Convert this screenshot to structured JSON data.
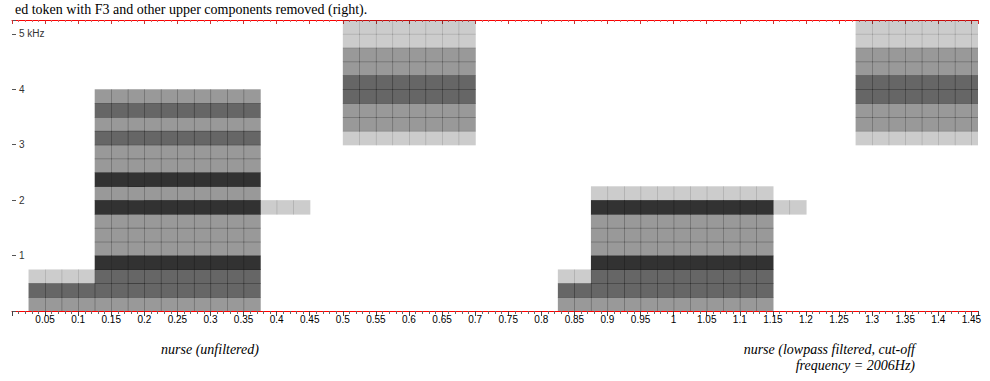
{
  "chart_data": {
    "type": "heatmap",
    "caption": "ed token with F3 and other upper components removed (right).",
    "annotations": [
      "nurse (unfiltered)",
      "nurse (lowpass filtered, cut-off frequency = 2006Hz)"
    ],
    "color": "#1c1c1c",
    "grid": false,
    "xlim": [
      0,
      1.46
    ],
    "xticks": [
      0.05,
      0.1,
      0.15,
      0.2,
      0.25,
      0.3,
      0.35,
      0.4,
      0.45,
      0.5,
      0.55,
      0.6,
      0.65,
      0.7,
      0.75,
      0.8,
      0.85,
      0.9,
      0.95,
      1,
      1.05,
      1.1,
      1.15,
      1.2,
      1.25,
      1.3,
      1.35,
      1.4,
      1.45
    ],
    "ylim": [
      0,
      5.25
    ],
    "yticks": [
      1,
      2,
      3,
      4,
      {
        "value": 5,
        "label": "5 kHz"
      }
    ],
    "cells": {
      "x": [
        0,
        0.025,
        0.05,
        0.075,
        0.1,
        0.125,
        0.15,
        0.175,
        0.2,
        0.225,
        0.25,
        0.275,
        0.3,
        0.325,
        0.35,
        0.375,
        0.4,
        0.425,
        0.45,
        0.475,
        0.5,
        0.525,
        0.55,
        0.575,
        0.6,
        0.625,
        0.65,
        0.675,
        0.7,
        0.725,
        0.75,
        0.775,
        0.8,
        0.825,
        0.85,
        0.875,
        0.9,
        0.925,
        0.95,
        0.975,
        1,
        1.025,
        1.05,
        1.075,
        1.1,
        1.125,
        1.15,
        1.175,
        1.2,
        1.225,
        1.25,
        1.275,
        1.3,
        1.325,
        1.35,
        1.375,
        1.4,
        1.425,
        1.45
      ],
      "y": [
        0,
        0.25,
        0.5,
        0.75,
        1,
        1.25,
        1.5,
        1.75,
        2,
        2.25,
        2.5,
        2.75,
        3,
        3.25,
        3.5,
        3.75,
        4,
        4.25,
        4.5,
        4.75,
        5
      ],
      "z": [
        [
          0,
          2,
          2,
          2,
          2,
          2,
          2,
          2,
          2,
          2,
          2,
          2,
          2,
          2,
          2,
          0,
          0,
          0,
          0,
          0,
          0,
          0,
          0,
          0,
          0,
          0,
          0,
          0,
          0,
          0,
          0,
          0,
          0,
          2,
          2,
          2,
          2,
          2,
          2,
          2,
          2,
          2,
          2,
          2,
          2,
          2,
          0,
          0,
          0,
          0,
          0,
          0,
          0,
          0,
          0,
          0,
          0,
          0,
          0
        ],
        [
          0,
          3,
          3,
          3,
          3,
          3,
          3,
          3,
          3,
          3,
          3,
          3,
          3,
          3,
          3,
          0,
          0,
          0,
          0,
          0,
          0,
          0,
          0,
          0,
          0,
          0,
          0,
          0,
          0,
          0,
          0,
          0,
          0,
          3,
          3,
          3,
          3,
          3,
          3,
          3,
          3,
          3,
          3,
          3,
          3,
          3,
          0,
          0,
          0,
          0,
          0,
          0,
          0,
          0,
          0,
          0,
          0,
          0,
          0
        ],
        [
          0,
          1,
          1,
          1,
          1,
          3,
          3,
          3,
          3,
          3,
          3,
          3,
          3,
          3,
          3,
          0,
          0,
          0,
          0,
          0,
          0,
          0,
          0,
          0,
          0,
          0,
          0,
          0,
          0,
          0,
          0,
          0,
          0,
          1,
          1,
          3,
          3,
          3,
          3,
          3,
          3,
          3,
          3,
          3,
          3,
          3,
          0,
          0,
          0,
          0,
          0,
          0,
          0,
          0,
          0,
          0,
          0,
          0,
          0
        ],
        [
          0,
          0,
          0,
          0,
          0,
          4,
          4,
          4,
          4,
          4,
          4,
          4,
          4,
          4,
          4,
          0,
          0,
          0,
          0,
          0,
          0,
          0,
          0,
          0,
          0,
          0,
          0,
          0,
          0,
          0,
          0,
          0,
          0,
          0,
          0,
          4,
          4,
          4,
          4,
          4,
          4,
          4,
          4,
          4,
          4,
          4,
          0,
          0,
          0,
          0,
          0,
          0,
          0,
          0,
          0,
          0,
          0,
          0,
          0
        ],
        [
          0,
          0,
          0,
          0,
          0,
          2,
          2,
          2,
          2,
          2,
          2,
          2,
          2,
          2,
          2,
          0,
          0,
          0,
          0,
          0,
          0,
          0,
          0,
          0,
          0,
          0,
          0,
          0,
          0,
          0,
          0,
          0,
          0,
          0,
          0,
          2,
          2,
          2,
          2,
          2,
          2,
          2,
          2,
          2,
          2,
          2,
          0,
          0,
          0,
          0,
          0,
          0,
          0,
          0,
          0,
          0,
          0,
          0,
          0
        ],
        [
          0,
          0,
          0,
          0,
          0,
          2,
          2,
          2,
          2,
          2,
          2,
          2,
          2,
          2,
          2,
          0,
          0,
          0,
          0,
          0,
          0,
          0,
          0,
          0,
          0,
          0,
          0,
          0,
          0,
          0,
          0,
          0,
          0,
          0,
          0,
          2,
          2,
          2,
          2,
          2,
          2,
          2,
          2,
          2,
          2,
          2,
          0,
          0,
          0,
          0,
          0,
          0,
          0,
          0,
          0,
          0,
          0,
          0,
          0
        ],
        [
          0,
          0,
          0,
          0,
          0,
          2,
          2,
          2,
          2,
          2,
          2,
          2,
          2,
          2,
          2,
          0,
          0,
          0,
          0,
          0,
          0,
          0,
          0,
          0,
          0,
          0,
          0,
          0,
          0,
          0,
          0,
          0,
          0,
          0,
          0,
          2,
          2,
          2,
          2,
          2,
          2,
          2,
          2,
          2,
          2,
          2,
          0,
          0,
          0,
          0,
          0,
          0,
          0,
          0,
          0,
          0,
          0,
          0,
          0
        ],
        [
          0,
          0,
          0,
          0,
          0,
          4,
          4,
          4,
          4,
          4,
          4,
          4,
          4,
          4,
          4,
          1,
          1,
          1,
          0,
          0,
          0,
          0,
          0,
          0,
          0,
          0,
          0,
          0,
          0,
          0,
          0,
          0,
          0,
          0,
          0,
          4,
          4,
          4,
          4,
          4,
          4,
          4,
          4,
          4,
          4,
          4,
          1,
          1,
          0,
          0,
          0,
          0,
          0,
          0,
          0,
          0,
          0,
          0,
          0
        ],
        [
          0,
          0,
          0,
          0,
          0,
          2,
          2,
          2,
          2,
          2,
          2,
          2,
          2,
          2,
          2,
          0,
          0,
          0,
          0,
          0,
          0,
          0,
          0,
          0,
          0,
          0,
          0,
          0,
          0,
          0,
          0,
          0,
          0,
          0,
          0,
          1,
          1,
          1,
          1,
          1,
          1,
          1,
          1,
          1,
          1,
          1,
          0,
          0,
          0,
          0,
          0,
          0,
          0,
          0,
          0,
          0,
          0,
          0,
          0
        ],
        [
          0,
          0,
          0,
          0,
          0,
          4,
          4,
          4,
          4,
          4,
          4,
          4,
          4,
          4,
          4,
          0,
          0,
          0,
          0,
          0,
          0,
          0,
          0,
          0,
          0,
          0,
          0,
          0,
          0,
          0,
          0,
          0,
          0,
          0,
          0,
          0,
          0,
          0,
          0,
          0,
          0,
          0,
          0,
          0,
          0,
          0,
          0,
          0,
          0,
          0,
          0,
          0,
          0,
          0,
          0,
          0,
          0,
          0,
          0
        ],
        [
          0,
          0,
          0,
          0,
          0,
          2,
          2,
          2,
          2,
          2,
          2,
          2,
          2,
          2,
          2,
          0,
          0,
          0,
          0,
          0,
          0,
          0,
          0,
          0,
          0,
          0,
          0,
          0,
          0,
          0,
          0,
          0,
          0,
          0,
          0,
          0,
          0,
          0,
          0,
          0,
          0,
          0,
          0,
          0,
          0,
          0,
          0,
          0,
          0,
          0,
          0,
          0,
          0,
          0,
          0,
          0,
          0,
          0,
          0
        ],
        [
          0,
          0,
          0,
          0,
          0,
          2,
          2,
          2,
          2,
          2,
          2,
          2,
          2,
          2,
          2,
          0,
          0,
          0,
          0,
          0,
          0,
          0,
          0,
          0,
          0,
          0,
          0,
          0,
          0,
          0,
          0,
          0,
          0,
          0,
          0,
          0,
          0,
          0,
          0,
          0,
          0,
          0,
          0,
          0,
          0,
          0,
          0,
          0,
          0,
          0,
          0,
          0,
          0,
          0,
          0,
          0,
          0,
          0,
          0
        ],
        [
          0,
          0,
          0,
          0,
          0,
          3,
          3,
          3,
          3,
          3,
          3,
          3,
          3,
          3,
          3,
          0,
          0,
          0,
          0,
          0,
          1,
          1,
          1,
          1,
          1,
          1,
          1,
          1,
          0,
          0,
          0,
          0,
          0,
          0,
          0,
          0,
          0,
          0,
          0,
          0,
          0,
          0,
          0,
          0,
          0,
          0,
          0,
          0,
          0,
          0,
          0,
          1,
          1,
          1,
          1,
          1,
          1,
          1,
          1
        ],
        [
          0,
          0,
          0,
          0,
          0,
          2,
          2,
          2,
          2,
          2,
          2,
          2,
          2,
          2,
          2,
          0,
          0,
          0,
          0,
          0,
          2,
          2,
          2,
          2,
          2,
          2,
          2,
          2,
          0,
          0,
          0,
          0,
          0,
          0,
          0,
          0,
          0,
          0,
          0,
          0,
          0,
          0,
          0,
          0,
          0,
          0,
          0,
          0,
          0,
          0,
          0,
          2,
          2,
          2,
          2,
          2,
          2,
          2,
          2
        ],
        [
          0,
          0,
          0,
          0,
          0,
          3,
          3,
          3,
          3,
          3,
          3,
          3,
          3,
          3,
          3,
          0,
          0,
          0,
          0,
          0,
          2,
          2,
          2,
          2,
          2,
          2,
          2,
          2,
          0,
          0,
          0,
          0,
          0,
          0,
          0,
          0,
          0,
          0,
          0,
          0,
          0,
          0,
          0,
          0,
          0,
          0,
          0,
          0,
          0,
          0,
          0,
          2,
          2,
          2,
          2,
          2,
          2,
          2,
          2
        ],
        [
          0,
          0,
          0,
          0,
          0,
          2,
          2,
          2,
          2,
          2,
          2,
          2,
          2,
          2,
          2,
          0,
          0,
          0,
          0,
          0,
          3,
          3,
          3,
          3,
          3,
          3,
          3,
          3,
          0,
          0,
          0,
          0,
          0,
          0,
          0,
          0,
          0,
          0,
          0,
          0,
          0,
          0,
          0,
          0,
          0,
          0,
          0,
          0,
          0,
          0,
          0,
          3,
          3,
          3,
          3,
          3,
          3,
          3,
          3
        ],
        [
          0,
          0,
          0,
          0,
          0,
          0,
          0,
          0,
          0,
          0,
          0,
          0,
          0,
          0,
          0,
          0,
          0,
          0,
          0,
          0,
          3,
          3,
          3,
          3,
          3,
          3,
          3,
          3,
          0,
          0,
          0,
          0,
          0,
          0,
          0,
          0,
          0,
          0,
          0,
          0,
          0,
          0,
          0,
          0,
          0,
          0,
          0,
          0,
          0,
          0,
          0,
          3,
          3,
          3,
          3,
          3,
          3,
          3,
          3
        ],
        [
          0,
          0,
          0,
          0,
          0,
          0,
          0,
          0,
          0,
          0,
          0,
          0,
          0,
          0,
          0,
          0,
          0,
          0,
          0,
          0,
          2,
          2,
          2,
          2,
          2,
          2,
          2,
          2,
          0,
          0,
          0,
          0,
          0,
          0,
          0,
          0,
          0,
          0,
          0,
          0,
          0,
          0,
          0,
          0,
          0,
          0,
          0,
          0,
          0,
          0,
          0,
          2,
          2,
          2,
          2,
          2,
          2,
          2,
          2
        ],
        [
          0,
          0,
          0,
          0,
          0,
          0,
          0,
          0,
          0,
          0,
          0,
          0,
          0,
          0,
          0,
          0,
          0,
          0,
          0,
          0,
          2,
          2,
          2,
          2,
          2,
          2,
          2,
          2,
          0,
          0,
          0,
          0,
          0,
          0,
          0,
          0,
          0,
          0,
          0,
          0,
          0,
          0,
          0,
          0,
          0,
          0,
          0,
          0,
          0,
          0,
          0,
          2,
          2,
          2,
          2,
          2,
          2,
          2,
          2
        ],
        [
          0,
          0,
          0,
          0,
          0,
          0,
          0,
          0,
          0,
          0,
          0,
          0,
          0,
          0,
          0,
          0,
          0,
          0,
          0,
          0,
          1,
          1,
          1,
          1,
          1,
          1,
          1,
          1,
          0,
          0,
          0,
          0,
          0,
          0,
          0,
          0,
          0,
          0,
          0,
          0,
          0,
          0,
          0,
          0,
          0,
          0,
          0,
          0,
          0,
          0,
          0,
          1,
          1,
          1,
          1,
          1,
          1,
          1,
          1
        ],
        [
          0,
          0,
          0,
          0,
          0,
          0,
          0,
          0,
          0,
          0,
          0,
          0,
          0,
          0,
          0,
          0,
          0,
          0,
          0,
          0,
          1,
          1,
          1,
          1,
          1,
          1,
          1,
          1,
          0,
          0,
          0,
          0,
          0,
          0,
          0,
          0,
          0,
          0,
          0,
          0,
          0,
          0,
          0,
          0,
          0,
          0,
          0,
          0,
          0,
          0,
          0,
          1,
          1,
          1,
          1,
          1,
          1,
          1,
          1
        ]
      ]
    }
  }
}
